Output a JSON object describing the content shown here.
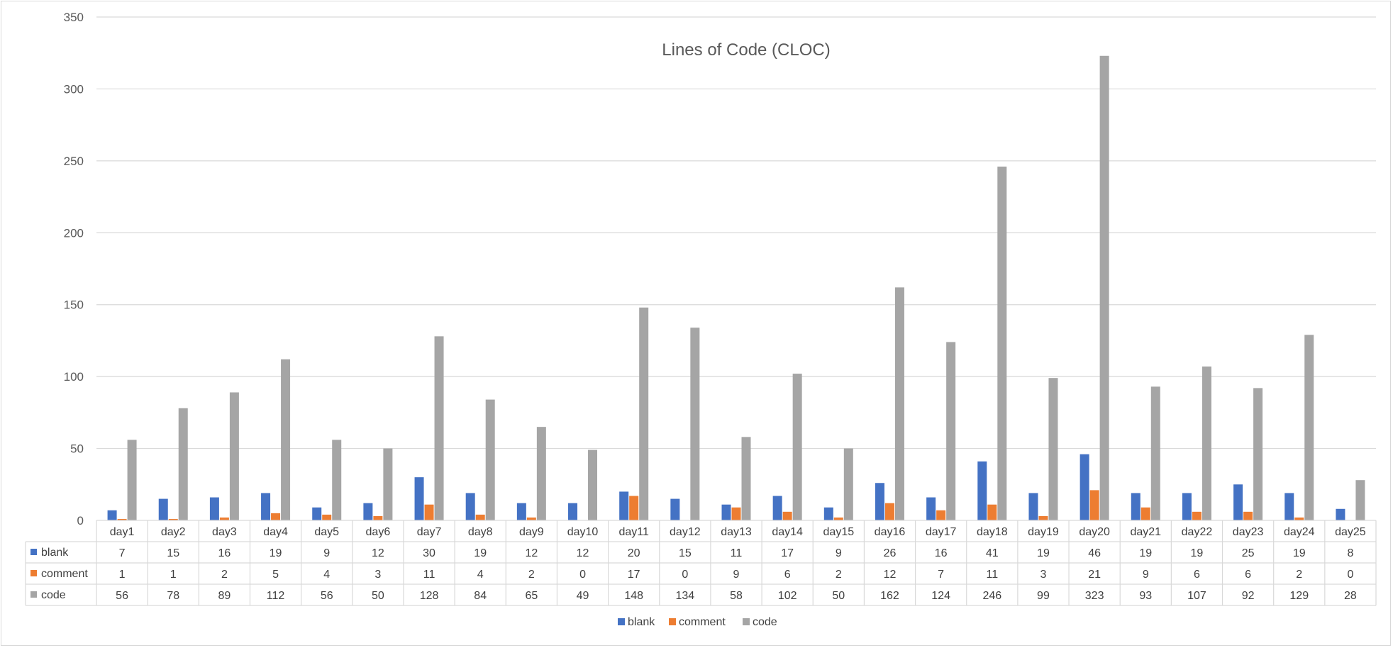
{
  "chart_data": {
    "type": "bar",
    "title": "Lines of Code (CLOC)",
    "categories": [
      "day1",
      "day2",
      "day3",
      "day4",
      "day5",
      "day6",
      "day7",
      "day8",
      "day9",
      "day10",
      "day11",
      "day12",
      "day13",
      "day14",
      "day15",
      "day16",
      "day17",
      "day18",
      "day19",
      "day20",
      "day21",
      "day22",
      "day23",
      "day24",
      "day25"
    ],
    "series": [
      {
        "name": "blank",
        "color": "#4472c4",
        "values": [
          7,
          15,
          16,
          19,
          9,
          12,
          30,
          19,
          12,
          12,
          20,
          15,
          11,
          17,
          9,
          26,
          16,
          41,
          19,
          46,
          19,
          19,
          25,
          19,
          8
        ]
      },
      {
        "name": "comment",
        "color": "#ed7d31",
        "values": [
          1,
          1,
          2,
          5,
          4,
          3,
          11,
          4,
          2,
          0,
          17,
          0,
          9,
          6,
          2,
          12,
          7,
          11,
          3,
          21,
          9,
          6,
          6,
          2,
          0
        ]
      },
      {
        "name": "code",
        "color": "#a5a5a5",
        "values": [
          56,
          78,
          89,
          112,
          56,
          50,
          128,
          84,
          65,
          49,
          148,
          134,
          58,
          102,
          50,
          162,
          124,
          246,
          99,
          323,
          93,
          107,
          92,
          129,
          28
        ]
      }
    ],
    "ylim": [
      0,
      350
    ],
    "yticks": [
      0,
      50,
      100,
      150,
      200,
      250,
      300,
      350
    ],
    "grid": true,
    "data_table": true,
    "legend": "bottom"
  }
}
